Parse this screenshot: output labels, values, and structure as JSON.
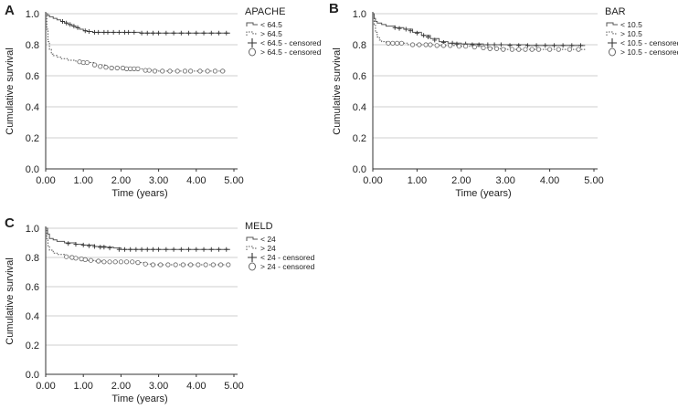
{
  "figure": {
    "colors": {
      "line": "#555555",
      "axis": "#333333",
      "grid": "#cfcfcf",
      "text": "#222222"
    }
  },
  "chart_data": [
    {
      "id": "A",
      "type": "line",
      "panel_label": "A",
      "legend_title": "APACHE",
      "legend_position": "right",
      "xlabel": "Time (years)",
      "ylabel": "Cumulative survival",
      "xlim": [
        0,
        5
      ],
      "ylim": [
        0,
        1
      ],
      "grid": "horizontal",
      "xticks": [
        "0.00",
        "1.00",
        "2.00",
        "3.00",
        "4.00",
        "5.00"
      ],
      "yticks": [
        "0.0",
        "0.2",
        "0.4",
        "0.6",
        "0.8",
        "1.0"
      ],
      "series": [
        {
          "name": "< 64.5",
          "style": "solid",
          "x": [
            0,
            0.05,
            0.1,
            0.2,
            0.3,
            0.4,
            0.5,
            0.6,
            0.7,
            0.8,
            0.9,
            1.0,
            1.1,
            1.25,
            1.5,
            1.7,
            2.0,
            2.5,
            3.0,
            4.0,
            4.9
          ],
          "y": [
            1.0,
            0.99,
            0.98,
            0.97,
            0.96,
            0.95,
            0.94,
            0.93,
            0.92,
            0.91,
            0.9,
            0.89,
            0.885,
            0.88,
            0.88,
            0.88,
            0.88,
            0.875,
            0.875,
            0.875,
            0.875
          ]
        },
        {
          "name": "> 64.5",
          "style": "dotted",
          "x": [
            0,
            0.03,
            0.06,
            0.1,
            0.15,
            0.2,
            0.3,
            0.4,
            0.6,
            0.8,
            1.0,
            1.3,
            1.6,
            2.0,
            2.3,
            2.6,
            3.0,
            4.0,
            4.8
          ],
          "y": [
            1.0,
            0.9,
            0.82,
            0.77,
            0.74,
            0.73,
            0.72,
            0.71,
            0.7,
            0.69,
            0.685,
            0.67,
            0.655,
            0.65,
            0.645,
            0.635,
            0.63,
            0.63,
            0.63
          ]
        },
        {
          "name": "< 64.5 - censored",
          "style": "plus",
          "x": [
            0.45,
            0.55,
            0.65,
            0.75,
            0.85,
            1.05,
            1.15,
            1.3,
            1.4,
            1.55,
            1.65,
            1.8,
            1.95,
            2.1,
            2.2,
            2.35,
            2.55,
            2.7,
            2.85,
            3.0,
            3.2,
            3.4,
            3.6,
            3.8,
            4.0,
            4.2,
            4.4,
            4.6,
            4.8
          ],
          "y": [
            0.95,
            0.94,
            0.93,
            0.92,
            0.91,
            0.89,
            0.885,
            0.88,
            0.88,
            0.88,
            0.88,
            0.88,
            0.88,
            0.88,
            0.88,
            0.88,
            0.875,
            0.875,
            0.875,
            0.875,
            0.875,
            0.875,
            0.875,
            0.875,
            0.875,
            0.875,
            0.875,
            0.875,
            0.875
          ]
        },
        {
          "name": "> 64.5 - censored",
          "style": "circle",
          "x": [
            0.9,
            1.0,
            1.1,
            1.3,
            1.45,
            1.6,
            1.75,
            1.9,
            2.05,
            2.15,
            2.25,
            2.35,
            2.45,
            2.65,
            2.75,
            2.9,
            3.1,
            3.3,
            3.5,
            3.7,
            3.85,
            4.1,
            4.3,
            4.5,
            4.7
          ],
          "y": [
            0.69,
            0.685,
            0.685,
            0.67,
            0.66,
            0.655,
            0.65,
            0.65,
            0.65,
            0.645,
            0.645,
            0.645,
            0.645,
            0.635,
            0.635,
            0.63,
            0.63,
            0.63,
            0.63,
            0.63,
            0.63,
            0.63,
            0.63,
            0.63,
            0.63
          ]
        }
      ]
    },
    {
      "id": "B",
      "type": "line",
      "panel_label": "B",
      "legend_title": "BAR",
      "legend_position": "right",
      "xlabel": "Time (years)",
      "ylabel": "Cumulative survival",
      "xlim": [
        0,
        5
      ],
      "ylim": [
        0,
        1
      ],
      "grid": "horizontal",
      "xticks": [
        "0.00",
        "1.00",
        "2.00",
        "3.00",
        "4.00",
        "5.00"
      ],
      "yticks": [
        "0.0",
        "0.2",
        "0.4",
        "0.6",
        "0.8",
        "1.0"
      ],
      "series": [
        {
          "name": "< 10.5",
          "style": "solid",
          "x": [
            0,
            0.03,
            0.06,
            0.1,
            0.2,
            0.3,
            0.5,
            0.7,
            0.9,
            1.1,
            1.3,
            1.5,
            1.7,
            2.0,
            2.5,
            3.0,
            3.5,
            4.0,
            4.8
          ],
          "y": [
            1.0,
            0.97,
            0.95,
            0.94,
            0.93,
            0.92,
            0.91,
            0.9,
            0.88,
            0.86,
            0.84,
            0.82,
            0.81,
            0.805,
            0.8,
            0.8,
            0.795,
            0.795,
            0.795
          ]
        },
        {
          "name": "> 10.5",
          "style": "dotted",
          "x": [
            0,
            0.03,
            0.06,
            0.1,
            0.15,
            0.2,
            0.3,
            0.5,
            0.8,
            1.0,
            1.5,
            2.0,
            2.5,
            2.7,
            3.0,
            4.0,
            4.8
          ],
          "y": [
            1.0,
            0.93,
            0.88,
            0.85,
            0.83,
            0.82,
            0.81,
            0.81,
            0.8,
            0.8,
            0.795,
            0.79,
            0.78,
            0.775,
            0.77,
            0.77,
            0.77
          ]
        },
        {
          "name": "< 10.5 - censored",
          "style": "plus",
          "x": [
            0.5,
            0.6,
            0.75,
            0.85,
            1.0,
            1.15,
            1.25,
            1.4,
            1.6,
            1.8,
            1.9,
            2.1,
            2.25,
            2.4,
            2.6,
            2.75,
            2.9,
            3.1,
            3.3,
            3.5,
            3.7,
            3.9,
            4.1,
            4.3,
            4.5,
            4.7
          ],
          "y": [
            0.91,
            0.905,
            0.9,
            0.89,
            0.875,
            0.86,
            0.85,
            0.83,
            0.815,
            0.81,
            0.805,
            0.805,
            0.8,
            0.8,
            0.8,
            0.8,
            0.8,
            0.795,
            0.795,
            0.795,
            0.795,
            0.795,
            0.795,
            0.795,
            0.795,
            0.795
          ]
        },
        {
          "name": "> 10.5 - censored",
          "style": "circle",
          "x": [
            0.35,
            0.45,
            0.55,
            0.65,
            0.9,
            1.05,
            1.2,
            1.3,
            1.45,
            1.6,
            1.75,
            1.95,
            2.1,
            2.3,
            2.5,
            2.65,
            2.8,
            2.95,
            3.15,
            3.3,
            3.45,
            3.6,
            3.75,
            4.0,
            4.2,
            4.45,
            4.65
          ],
          "y": [
            0.81,
            0.81,
            0.81,
            0.81,
            0.8,
            0.8,
            0.8,
            0.8,
            0.795,
            0.795,
            0.795,
            0.79,
            0.79,
            0.785,
            0.78,
            0.775,
            0.775,
            0.77,
            0.77,
            0.77,
            0.77,
            0.77,
            0.77,
            0.77,
            0.77,
            0.77,
            0.77
          ]
        }
      ]
    },
    {
      "id": "C",
      "type": "line",
      "panel_label": "C",
      "legend_title": "MELD",
      "legend_position": "right",
      "xlabel": "Time (years)",
      "ylabel": "Cumulative survival",
      "xlim": [
        0,
        5
      ],
      "ylim": [
        0,
        1
      ],
      "grid": "horizontal",
      "xticks": [
        "0.00",
        "1.00",
        "2.00",
        "3.00",
        "4.00",
        "5.00"
      ],
      "yticks": [
        "0.0",
        "0.2",
        "0.4",
        "0.6",
        "0.8",
        "1.0"
      ],
      "series": [
        {
          "name": "< 24",
          "style": "solid",
          "x": [
            0,
            0.05,
            0.1,
            0.2,
            0.3,
            0.5,
            0.8,
            1.0,
            1.3,
            1.6,
            1.8,
            2.0,
            3.0,
            4.0,
            4.9
          ],
          "y": [
            1.0,
            0.96,
            0.93,
            0.92,
            0.91,
            0.9,
            0.89,
            0.885,
            0.875,
            0.87,
            0.865,
            0.855,
            0.855,
            0.855,
            0.855
          ]
        },
        {
          "name": "> 24",
          "style": "dotted",
          "x": [
            0,
            0.03,
            0.06,
            0.1,
            0.2,
            0.3,
            0.5,
            0.7,
            0.9,
            1.1,
            1.3,
            1.6,
            2.0,
            2.4,
            2.6,
            2.8,
            3.0,
            4.0,
            4.9
          ],
          "y": [
            1.0,
            0.93,
            0.88,
            0.85,
            0.83,
            0.82,
            0.81,
            0.8,
            0.79,
            0.78,
            0.775,
            0.77,
            0.77,
            0.765,
            0.755,
            0.75,
            0.75,
            0.75,
            0.75
          ]
        },
        {
          "name": "< 24 - censored",
          "style": "plus",
          "x": [
            0.6,
            0.8,
            1.0,
            1.15,
            1.3,
            1.45,
            1.55,
            1.7,
            1.95,
            2.1,
            2.25,
            2.4,
            2.55,
            2.7,
            2.85,
            3.0,
            3.2,
            3.4,
            3.6,
            3.8,
            4.0,
            4.2,
            4.4,
            4.6,
            4.8
          ],
          "y": [
            0.895,
            0.89,
            0.885,
            0.88,
            0.875,
            0.87,
            0.87,
            0.865,
            0.855,
            0.855,
            0.855,
            0.855,
            0.855,
            0.855,
            0.855,
            0.855,
            0.855,
            0.855,
            0.855,
            0.855,
            0.855,
            0.855,
            0.855,
            0.855,
            0.855
          ]
        },
        {
          "name": "> 24 - censored",
          "style": "circle",
          "x": [
            0.55,
            0.7,
            0.8,
            0.95,
            1.05,
            1.2,
            1.4,
            1.55,
            1.7,
            1.85,
            2.0,
            2.15,
            2.3,
            2.45,
            2.65,
            2.85,
            3.05,
            3.25,
            3.45,
            3.65,
            3.85,
            4.05,
            4.25,
            4.45,
            4.65,
            4.85
          ],
          "y": [
            0.805,
            0.8,
            0.795,
            0.79,
            0.785,
            0.78,
            0.775,
            0.77,
            0.77,
            0.77,
            0.77,
            0.77,
            0.77,
            0.765,
            0.755,
            0.75,
            0.75,
            0.75,
            0.75,
            0.75,
            0.75,
            0.75,
            0.75,
            0.75,
            0.75,
            0.75
          ]
        }
      ]
    }
  ]
}
